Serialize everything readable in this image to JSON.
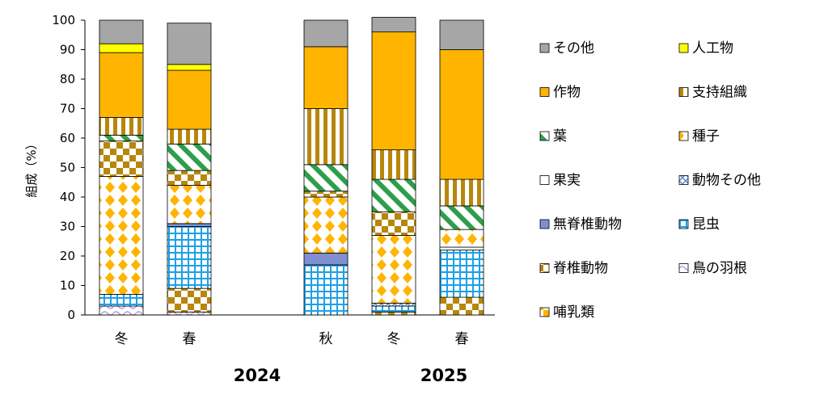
{
  "chart_data": {
    "type": "bar",
    "stacked": true,
    "ylabel": "組成（%）",
    "ylim": [
      0,
      100
    ],
    "yticks": [
      0,
      10,
      20,
      30,
      40,
      50,
      60,
      70,
      80,
      90,
      100
    ],
    "categories": [
      "冬",
      "春",
      "秋",
      "冬",
      "春"
    ],
    "groups": [
      {
        "label": "2024",
        "categories": [
          "冬",
          "春"
        ]
      },
      {
        "label": "2025",
        "categories": [
          "秋",
          "冬",
          "春"
        ]
      }
    ],
    "legend_position": "right",
    "series": [
      {
        "name": "哺乳類",
        "color": "#ffb400",
        "pattern": "checker",
        "values": [
          0,
          0,
          0,
          0,
          0
        ]
      },
      {
        "name": "鳥の羽根",
        "color": "#b39ddb",
        "pattern": "wave",
        "values": [
          3,
          1,
          0,
          0,
          0
        ]
      },
      {
        "name": "脊椎動物",
        "color": "#b8860b",
        "pattern": "checker",
        "values": [
          0,
          8,
          0,
          1,
          6
        ]
      },
      {
        "name": "昆虫",
        "color": "#1ea0e6",
        "pattern": "grid",
        "values": [
          4,
          21,
          17,
          2,
          16
        ]
      },
      {
        "name": "無脊椎動物",
        "color": "#7f8fd1",
        "pattern": "solid",
        "values": [
          0,
          1,
          4,
          0,
          0
        ]
      },
      {
        "name": "動物その他",
        "color": "#5b8ad6",
        "pattern": "cross",
        "values": [
          0,
          0,
          0,
          1,
          0
        ]
      },
      {
        "name": "果実",
        "color": "#ffffff",
        "pattern": "plain",
        "values": [
          0,
          0,
          0,
          0,
          1
        ]
      },
      {
        "name": "種子",
        "color": "#ffb400",
        "pattern": "diamond",
        "values": [
          40,
          13,
          19,
          23,
          6
        ]
      },
      {
        "name": "葉",
        "color": "#2e9e4a",
        "pattern": "diag",
        "values": [
          0,
          0,
          0,
          0,
          0
        ]
      },
      {
        "name": "種子",
        "color": "#b8860b",
        "pattern": "checker",
        "values": [
          12,
          5,
          2,
          8,
          0
        ]
      },
      {
        "name": "葉",
        "color": "#2e9e4a",
        "pattern": "diag",
        "values": [
          2,
          9,
          9,
          11,
          8
        ]
      },
      {
        "name": "支持組織",
        "color": "#b8860b",
        "pattern": "vstripe",
        "values": [
          6,
          5,
          19,
          10,
          9
        ]
      },
      {
        "name": "作物",
        "color": "#ffb400",
        "pattern": "solid",
        "values": [
          22,
          20,
          21,
          40,
          44
        ]
      },
      {
        "name": "人工物",
        "color": "#ffff00",
        "pattern": "solid",
        "values": [
          3,
          2,
          0,
          0,
          0
        ]
      },
      {
        "name": "その他",
        "color": "#a6a6a6",
        "pattern": "solid",
        "values": [
          8,
          14,
          9,
          5,
          10
        ]
      }
    ],
    "legend": [
      {
        "name": "その他",
        "color": "#a6a6a6",
        "pattern": "solid"
      },
      {
        "name": "人工物",
        "color": "#ffff00",
        "pattern": "solid"
      },
      {
        "name": "作物",
        "color": "#ffb400",
        "pattern": "solid"
      },
      {
        "name": "支持組織",
        "color": "#b8860b",
        "pattern": "vstripe"
      },
      {
        "name": "葉",
        "color": "#2e9e4a",
        "pattern": "diag"
      },
      {
        "name": "種子",
        "color": "#ffb400",
        "pattern": "diamond"
      },
      {
        "name": "果実",
        "color": "#ffffff",
        "pattern": "plain"
      },
      {
        "name": "動物その他",
        "color": "#5b8ad6",
        "pattern": "cross"
      },
      {
        "name": "無脊椎動物",
        "color": "#7f8fd1",
        "pattern": "solid"
      },
      {
        "name": "昆虫",
        "color": "#1ea0e6",
        "pattern": "grid"
      },
      {
        "name": "脊椎動物",
        "color": "#b8860b",
        "pattern": "checker"
      },
      {
        "name": "鳥の羽根",
        "color": "#b39ddb",
        "pattern": "wave"
      },
      {
        "name": "哺乳類",
        "color": "#ffb400",
        "pattern": "checker"
      }
    ]
  }
}
